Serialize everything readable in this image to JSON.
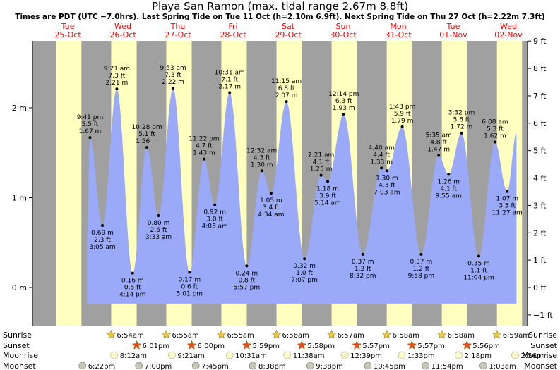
{
  "title": "Playa San Ramon (max. tidal range 2.67m 8.8ft)",
  "subtitle": "Times are PDT (UTC −7.0hrs). Last Spring Tide on Tue 11 Oct (h=2.10m 6.9ft). Next Spring Tide on Thu 27 Oct (h=2.22m 7.3ft)",
  "days": [
    {
      "weekday": "Tue",
      "date": "25-Oct"
    },
    {
      "weekday": "Wed",
      "date": "26-Oct"
    },
    {
      "weekday": "Thu",
      "date": "27-Oct"
    },
    {
      "weekday": "Fri",
      "date": "28-Oct"
    },
    {
      "weekday": "Sat",
      "date": "29-Oct"
    },
    {
      "weekday": "Sun",
      "date": "30-Oct"
    },
    {
      "weekday": "Mon",
      "date": "31-Oct"
    },
    {
      "weekday": "Tue",
      "date": "01-Nov"
    },
    {
      "weekday": "Wed",
      "date": "02-Nov"
    }
  ],
  "colors": {
    "night": "#a0a0a0",
    "day": "#ffffc0",
    "tide": "#9aa9f8",
    "date_text": "#ff0000",
    "sun_star": "#e8c840",
    "set_star": "#e05020",
    "moonrise": "#fffbd0",
    "moonset": "#c8c8b8"
  },
  "chart_data": {
    "type": "area",
    "title": "Playa San Ramon (max. tidal range 2.67m 8.8ft)",
    "x_unit": "days from 25-Oct 00:00",
    "y_unit": "m",
    "ylim": [
      -0.27,
      2.7
    ],
    "left_ticks": [
      {
        "value": 0,
        "label": "0 m"
      },
      {
        "value": 1,
        "label": "1 m"
      },
      {
        "value": 2,
        "label": "2 m"
      }
    ],
    "right_ticks": [
      {
        "value": -1,
        "label": "−1 ft"
      },
      {
        "value": 0,
        "label": "0 ft"
      },
      {
        "value": 1,
        "label": "1 ft"
      },
      {
        "value": 2,
        "label": "2 ft"
      },
      {
        "value": 3,
        "label": "3 ft"
      },
      {
        "value": 4,
        "label": "4 ft"
      },
      {
        "value": 5,
        "label": "5 ft"
      },
      {
        "value": 6,
        "label": "6 ft"
      },
      {
        "value": 7,
        "label": "7 ft"
      },
      {
        "value": 8,
        "label": "8 ft"
      },
      {
        "value": 9,
        "label": "9 ft"
      }
    ],
    "extremes": [
      {
        "day": 0,
        "time": "9:41 pm",
        "m": 1.67,
        "ft": "5.5 ft",
        "m_label": "1.67 m",
        "pos": "above"
      },
      {
        "day": 1,
        "time": "3:05 am",
        "m": 0.69,
        "ft": "2.3 ft",
        "m_label": "0.69 m",
        "pos": "below"
      },
      {
        "day": 1,
        "time": "9:21 am",
        "m": 2.21,
        "ft": "7.3 ft",
        "m_label": "2.21 m",
        "pos": "above"
      },
      {
        "day": 1,
        "time": "4:14 pm",
        "m": 0.16,
        "ft": "0.5 ft",
        "m_label": "0.16 m",
        "pos": "below"
      },
      {
        "day": 1,
        "time": "10:28 pm",
        "m": 1.56,
        "ft": "5.1 ft",
        "m_label": "1.56 m",
        "pos": "above"
      },
      {
        "day": 2,
        "time": "3:33 am",
        "m": 0.8,
        "ft": "2.6 ft",
        "m_label": "0.80 m",
        "pos": "below"
      },
      {
        "day": 2,
        "time": "9:53 am",
        "m": 2.22,
        "ft": "7.3 ft",
        "m_label": "2.22 m",
        "pos": "above"
      },
      {
        "day": 2,
        "time": "5:01 pm",
        "m": 0.17,
        "ft": "0.6 ft",
        "m_label": "0.17 m",
        "pos": "below"
      },
      {
        "day": 2,
        "time": "11:22 pm",
        "m": 1.43,
        "ft": "4.7 ft",
        "m_label": "1.43 m",
        "pos": "above"
      },
      {
        "day": 3,
        "time": "4:03 am",
        "m": 0.92,
        "ft": "3.0 ft",
        "m_label": "0.92 m",
        "pos": "below"
      },
      {
        "day": 3,
        "time": "10:31 am",
        "m": 2.17,
        "ft": "7.1 ft",
        "m_label": "2.17 m",
        "pos": "above"
      },
      {
        "day": 3,
        "time": "5:57 pm",
        "m": 0.24,
        "ft": "0.8 ft",
        "m_label": "0.24 m",
        "pos": "below"
      },
      {
        "day": 4,
        "time": "12:32 am",
        "m": 1.3,
        "ft": "4.3 ft",
        "m_label": "1.30 m",
        "pos": "above"
      },
      {
        "day": 4,
        "time": "4:34 am",
        "m": 1.05,
        "ft": "3.4 ft",
        "m_label": "1.05 m",
        "pos": "below"
      },
      {
        "day": 4,
        "time": "11:15 am",
        "m": 2.07,
        "ft": "6.8 ft",
        "m_label": "2.07 m",
        "pos": "above"
      },
      {
        "day": 4,
        "time": "7:07 pm",
        "m": 0.32,
        "ft": "1.0 ft",
        "m_label": "0.32 m",
        "pos": "below"
      },
      {
        "day": 5,
        "time": "2:21 am",
        "m": 1.25,
        "ft": "4.1 ft",
        "m_label": "1.25 m",
        "pos": "above"
      },
      {
        "day": 5,
        "time": "5:14 am",
        "m": 1.18,
        "ft": "3.9 ft",
        "m_label": "1.18 m",
        "pos": "below"
      },
      {
        "day": 5,
        "time": "12:14 pm",
        "m": 1.93,
        "ft": "6.3 ft",
        "m_label": "1.93 m",
        "pos": "above"
      },
      {
        "day": 5,
        "time": "8:32 pm",
        "m": 0.37,
        "ft": "1.2 ft",
        "m_label": "0.37 m",
        "pos": "below"
      },
      {
        "day": 6,
        "time": "4:40 am",
        "m": 1.33,
        "ft": "4.4 ft",
        "m_label": "1.33 m",
        "pos": "above"
      },
      {
        "day": 6,
        "time": "7:03 am",
        "m": 1.3,
        "ft": "4.3 ft",
        "m_label": "1.30 m",
        "pos": "below"
      },
      {
        "day": 6,
        "time": "1:43 pm",
        "m": 1.79,
        "ft": "5.9 ft",
        "m_label": "1.79 m",
        "pos": "above"
      },
      {
        "day": 6,
        "time": "9:58 pm",
        "m": 0.37,
        "ft": "1.2 ft",
        "m_label": "0.37 m",
        "pos": "below"
      },
      {
        "day": 7,
        "time": "5:35 am",
        "m": 1.47,
        "ft": "4.8 ft",
        "m_label": "1.47 m",
        "pos": "above"
      },
      {
        "day": 7,
        "time": "9:55 am",
        "m": 1.26,
        "ft": "4.1 ft",
        "m_label": "1.26 m",
        "pos": "below"
      },
      {
        "day": 7,
        "time": "3:32 pm",
        "m": 1.72,
        "ft": "5.6 ft",
        "m_label": "1.72 m",
        "pos": "above"
      },
      {
        "day": 7,
        "time": "11:04 pm",
        "m": 0.35,
        "ft": "1.1 ft",
        "m_label": "0.35 m",
        "pos": "below"
      },
      {
        "day": 8,
        "time": "6:08 am",
        "m": 1.62,
        "ft": "5.3 ft",
        "m_label": "1.62 m",
        "pos": "above"
      },
      {
        "day": 8,
        "time": "11:27 am",
        "m": 1.07,
        "ft": "3.5 ft",
        "m_label": "1.07 m",
        "pos": "below"
      }
    ],
    "series_end": {
      "day": 8,
      "time": "3:30 pm",
      "m": 1.72
    }
  },
  "astro": {
    "row_labels": [
      "Sunrise",
      "Sunset",
      "Moonrise",
      "Moonset"
    ],
    "sunrise": [
      {
        "day": 1,
        "time": "6:54am"
      },
      {
        "day": 2,
        "time": "6:55am"
      },
      {
        "day": 3,
        "time": "6:55am"
      },
      {
        "day": 4,
        "time": "6:56am"
      },
      {
        "day": 5,
        "time": "6:57am"
      },
      {
        "day": 6,
        "time": "6:58am"
      },
      {
        "day": 7,
        "time": "6:58am"
      },
      {
        "day": 8,
        "time": "6:59am"
      }
    ],
    "sunset": [
      {
        "day": 1,
        "time": "6:01pm"
      },
      {
        "day": 2,
        "time": "6:00pm"
      },
      {
        "day": 3,
        "time": "5:59pm"
      },
      {
        "day": 4,
        "time": "5:58pm"
      },
      {
        "day": 5,
        "time": "5:57pm"
      },
      {
        "day": 6,
        "time": "5:57pm"
      },
      {
        "day": 7,
        "time": "5:56pm"
      }
    ],
    "moonrise": [
      {
        "day": 1,
        "time": "8:12am"
      },
      {
        "day": 2,
        "time": "9:21am"
      },
      {
        "day": 3,
        "time": "10:31am"
      },
      {
        "day": 4,
        "time": "11:38am"
      },
      {
        "day": 5,
        "time": "12:39pm"
      },
      {
        "day": 6,
        "time": "1:33pm"
      },
      {
        "day": 7,
        "time": "2:18pm"
      },
      {
        "day": 8,
        "time": "2:56pm"
      }
    ],
    "moonset": [
      {
        "day": 0,
        "time": "6:22pm"
      },
      {
        "day": 1,
        "time": "7:00pm"
      },
      {
        "day": 2,
        "time": "7:45pm"
      },
      {
        "day": 3,
        "time": "8:38pm"
      },
      {
        "day": 4,
        "time": "9:38pm"
      },
      {
        "day": 5,
        "time": "10:45pm"
      },
      {
        "day": 6,
        "time": "11:54pm"
      },
      {
        "day": 8,
        "time": "1:03am"
      }
    ]
  }
}
